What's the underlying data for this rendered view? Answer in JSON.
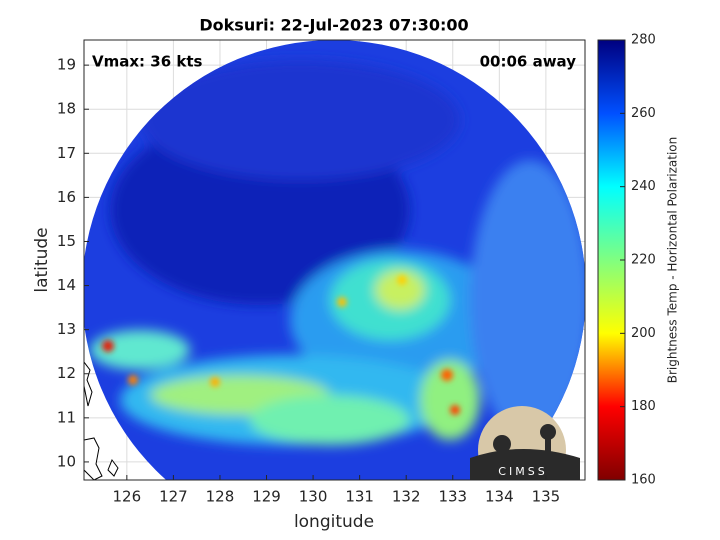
{
  "chart_data": {
    "type": "map",
    "title": "Doksuri: 22-Jul-2023 07:30:00",
    "annotations": [
      "Vmax: 36 kts",
      "00:06 away"
    ],
    "xlabel": "longitude",
    "ylabel": "latitude",
    "xlim": [
      125.08,
      135.84
    ],
    "xticks": [
      126,
      127,
      128,
      129,
      130,
      131,
      132,
      133,
      134,
      135
    ],
    "ylim": [
      9.59,
      19.57
    ],
    "yticks": [
      10,
      11,
      12,
      13,
      14,
      15,
      16,
      17,
      18,
      19
    ],
    "grid": true,
    "colorbar": {
      "label": "Brightness Temp - Horizontal Polarization",
      "lim": [
        160,
        280
      ],
      "ticks": [
        160,
        180,
        200,
        220,
        240,
        260,
        280
      ],
      "colors": [
        "#800000",
        "#ff0000",
        "#ffff00",
        "#80ff80",
        "#00ffff",
        "#0050ff",
        "#000080"
      ]
    },
    "logo_text": "CIMSS"
  }
}
